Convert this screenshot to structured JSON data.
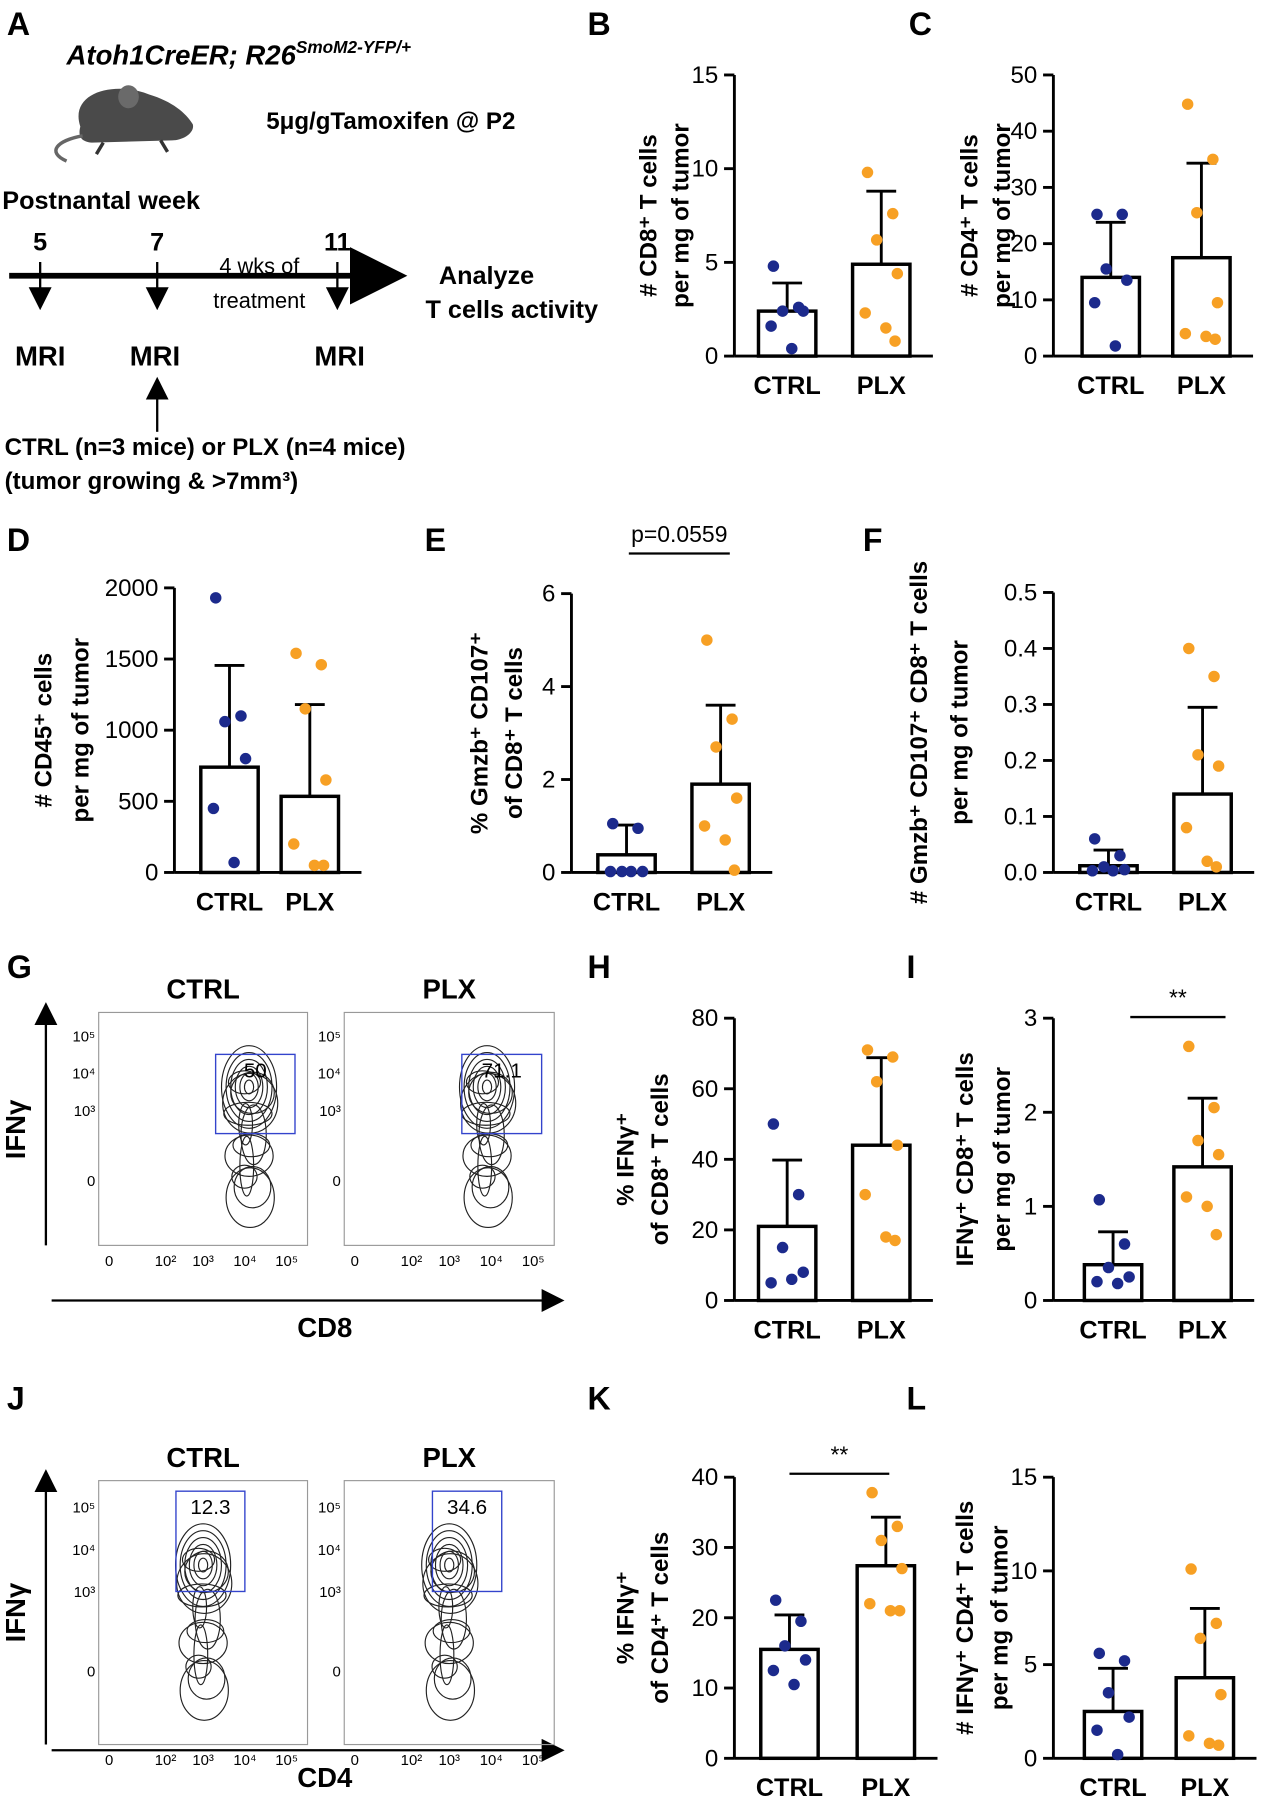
{
  "chart_data": [
    {
      "type": "bar",
      "panel": "B",
      "ylabel": [
        "# CD8⁺ T cells",
        "per mg of tumor"
      ],
      "categories": [
        "CTRL",
        "PLX"
      ],
      "values": [
        2.4,
        4.9
      ],
      "errors": [
        1.5,
        3.9
      ],
      "points": [
        [
          4.8,
          2.6,
          2.4,
          2.4,
          1.6,
          0.4
        ],
        [
          9.8,
          7.6,
          6.2,
          4.4,
          2.3,
          1.5,
          0.8
        ]
      ],
      "colors": [
        "#1c2a8c",
        "#f7a024"
      ],
      "ylim": [
        0,
        15
      ],
      "yticks": [
        0,
        5,
        10,
        15
      ]
    },
    {
      "type": "bar",
      "panel": "C",
      "ylabel": [
        "# CD4⁺ T cells",
        "per mg of tumor"
      ],
      "categories": [
        "CTRL",
        "PLX"
      ],
      "values": [
        14,
        17.5
      ],
      "errors": [
        9.8,
        16.8
      ],
      "points": [
        [
          25.2,
          25.2,
          15.5,
          13.5,
          9.5,
          1.8
        ],
        [
          44.8,
          35,
          25.5,
          9.5,
          4,
          3.5,
          3
        ]
      ],
      "colors": [
        "#1c2a8c",
        "#f7a024"
      ],
      "ylim": [
        0,
        50
      ],
      "yticks": [
        0,
        10,
        20,
        30,
        40,
        50
      ]
    },
    {
      "type": "bar",
      "panel": "D",
      "ylabel": [
        "# CD45⁺ cells",
        "per mg of tumor"
      ],
      "categories": [
        "CTRL",
        "PLX"
      ],
      "values": [
        740,
        535
      ],
      "errors": [
        715,
        645
      ],
      "points": [
        [
          1930,
          1100,
          1060,
          800,
          450,
          70
        ],
        [
          1540,
          1460,
          1150,
          650,
          200,
          50,
          50
        ]
      ],
      "colors": [
        "#1c2a8c",
        "#f7a024"
      ],
      "ylim": [
        0,
        2000
      ],
      "yticks": [
        0,
        500,
        1000,
        1500,
        2000
      ]
    },
    {
      "type": "bar",
      "panel": "E",
      "ylabel": [
        "% Gmzb⁺ CD107⁺",
        "of CD8⁺ T cells"
      ],
      "annotation": "p=0.0559",
      "categories": [
        "CTRL",
        "PLX"
      ],
      "values": [
        0.38,
        1.9
      ],
      "errors": [
        0.64,
        1.7
      ],
      "points": [
        [
          1.05,
          0.95,
          0.02,
          0.02,
          0.02,
          0.02
        ],
        [
          5.0,
          3.3,
          2.7,
          1.6,
          1.0,
          0.7,
          0.05
        ]
      ],
      "colors": [
        "#1c2a8c",
        "#f7a024"
      ],
      "ylim": [
        0,
        6
      ],
      "yticks": [
        0,
        2,
        4,
        6
      ]
    },
    {
      "type": "bar",
      "panel": "F",
      "ylabel": [
        "# Gmzb⁺ CD107⁺ CD8⁺ T cells",
        "per mg of tumor"
      ],
      "categories": [
        "CTRL",
        "PLX"
      ],
      "values": [
        0.012,
        0.14
      ],
      "errors": [
        0.028,
        0.155
      ],
      "points": [
        [
          0.06,
          0.03,
          0.01,
          0.005,
          0.003,
          0.003
        ],
        [
          0.4,
          0.35,
          0.21,
          0.19,
          0.08,
          0.02,
          0.01
        ]
      ],
      "colors": [
        "#1c2a8c",
        "#f7a024"
      ],
      "ylim": [
        0,
        0.5
      ],
      "yticks": [
        {
          "value": 0,
          "label": "0.0"
        },
        0.1,
        0.2,
        0.3,
        0.4,
        0.5
      ]
    },
    {
      "type": "bar",
      "panel": "H",
      "ylabel": [
        "% IFNγ⁺",
        "of CD8⁺ T cells"
      ],
      "categories": [
        "CTRL",
        "PLX"
      ],
      "values": [
        21,
        44
      ],
      "errors": [
        18.8,
        24.8
      ],
      "points": [
        [
          50,
          30,
          15,
          8,
          5,
          6
        ],
        [
          71,
          69,
          62,
          44,
          30,
          18,
          17
        ]
      ],
      "colors": [
        "#1c2a8c",
        "#f7a024"
      ],
      "ylim": [
        0,
        80
      ],
      "yticks": [
        0,
        20,
        40,
        60,
        80
      ]
    },
    {
      "type": "bar",
      "panel": "I",
      "ylabel": [
        "IFNγ⁺ CD8⁺ T cells",
        "per mg of tumor"
      ],
      "annotation": "**",
      "categories": [
        "CTRL",
        "PLX"
      ],
      "values": [
        0.38,
        1.42
      ],
      "errors": [
        0.35,
        0.73
      ],
      "points": [
        [
          1.07,
          0.6,
          0.35,
          0.25,
          0.2,
          0.18
        ],
        [
          2.7,
          2.05,
          1.7,
          1.55,
          1.1,
          1.0,
          0.7
        ]
      ],
      "colors": [
        "#1c2a8c",
        "#f7a024"
      ],
      "ylim": [
        0,
        3
      ],
      "yticks": [
        0,
        1,
        2,
        3
      ]
    },
    {
      "type": "bar",
      "panel": "K",
      "ylabel": [
        "% IFNγ⁺",
        "of CD4⁺ T cells"
      ],
      "annotation": "**",
      "categories": [
        "CTRL",
        "PLX"
      ],
      "values": [
        15.5,
        27.4
      ],
      "errors": [
        4.9,
        6.9
      ],
      "points": [
        [
          22.5,
          19.5,
          16,
          14,
          12.5,
          10.5
        ],
        [
          37.8,
          33,
          31,
          27,
          22,
          21,
          21
        ]
      ],
      "colors": [
        "#1c2a8c",
        "#f7a024"
      ],
      "ylim": [
        0,
        40
      ],
      "yticks": [
        0,
        10,
        20,
        30,
        40
      ]
    },
    {
      "type": "bar",
      "panel": "L",
      "ylabel": [
        "# IFNγ⁺ CD4⁺ T cells",
        "per mg of tumor"
      ],
      "categories": [
        "CTRL",
        "PLX"
      ],
      "values": [
        2.5,
        4.3
      ],
      "errors": [
        2.3,
        3.7
      ],
      "points": [
        [
          5.6,
          5.2,
          3.5,
          2.2,
          1.5,
          0.2
        ],
        [
          10.1,
          7.2,
          6.4,
          3.4,
          1.2,
          0.8,
          0.7
        ]
      ],
      "colors": [
        "#1c2a8c",
        "#f7a024"
      ],
      "ylim": [
        0,
        15
      ],
      "yticks": [
        0,
        5,
        10,
        15
      ]
    }
  ],
  "panel_a": {
    "letter": "A",
    "genotype": "Atoh1CreER; R26",
    "genotype_sup": "SmoM2-YFP/+",
    "dose": "5μg/gTamoxifen @ P2",
    "week_label": "Postnantal week",
    "weeks": [
      "5",
      "7",
      "11"
    ],
    "treatment": [
      "4 wks of",
      "treatment"
    ],
    "analyze": [
      "Analyze",
      "T cells activity"
    ],
    "scan": [
      "MRI",
      "MRI",
      "MRI"
    ],
    "groups": [
      "CTRL (n=3 mice) or PLX (n=4 mice)",
      "(tumor growing & >7mm³)"
    ]
  },
  "panel_g": {
    "letter": "G",
    "y_axis": "IFNγ",
    "x_axis": "CD8",
    "plots": [
      {
        "title": "CTRL",
        "gate": "50"
      },
      {
        "title": "PLX",
        "gate": "71.1"
      }
    ],
    "xticks": [
      "0",
      "10²",
      "10³",
      "10⁴",
      "10⁵"
    ],
    "yticks": [
      "10⁵",
      "10⁴",
      "10³",
      "0"
    ]
  },
  "panel_j": {
    "letter": "J",
    "y_axis": "IFNγ",
    "x_axis": "CD4",
    "plots": [
      {
        "title": "CTRL",
        "gate": "12.3"
      },
      {
        "title": "PLX",
        "gate": "34.6"
      }
    ],
    "xticks": [
      "0",
      "10²",
      "10³",
      "10⁴",
      "10⁵"
    ],
    "yticks": [
      "10⁵",
      "10⁴",
      "10³",
      "0"
    ]
  }
}
